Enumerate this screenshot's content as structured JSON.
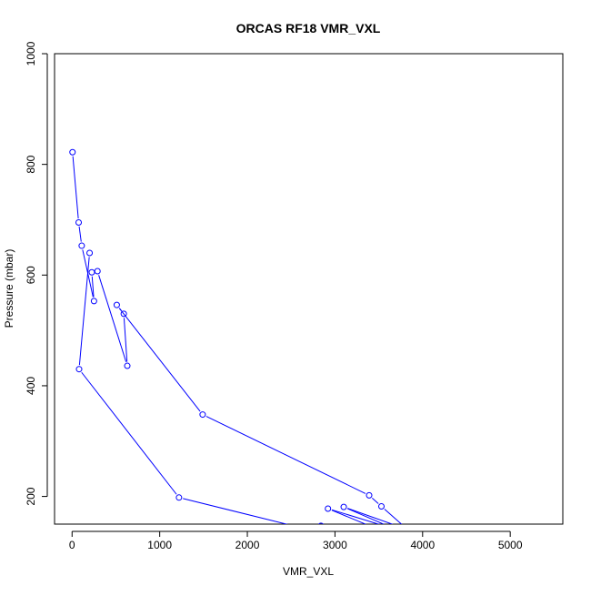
{
  "chart_data": {
    "type": "line",
    "title": "ORCAS RF18 VMR_VXL",
    "xlabel": "VMR_VXL",
    "ylabel": "Pressure (mbar)",
    "xlim": [
      -200,
      5600
    ],
    "ylim": [
      1000,
      150
    ],
    "y_reversed": true,
    "xticks": [
      0,
      1000,
      2000,
      3000,
      4000,
      5000
    ],
    "yticks": [
      200,
      400,
      600,
      800,
      1000
    ],
    "grid": false,
    "legend": "none",
    "line_color": "#0000ff",
    "marker": "open-circle",
    "series": [
      {
        "points": [
          [
            5,
            822
          ],
          [
            75,
            695
          ],
          [
            110,
            653
          ],
          [
            250,
            553
          ],
          [
            225,
            605
          ],
          [
            290,
            607
          ],
          [
            630,
            436
          ],
          [
            590,
            530
          ],
          [
            510,
            546
          ],
          [
            1490,
            348
          ],
          [
            3390,
            202
          ],
          [
            3530,
            182
          ],
          [
            3830,
            140
          ],
          [
            3100,
            181
          ],
          [
            3700,
            140
          ],
          [
            2920,
            178
          ],
          [
            3500,
            140
          ],
          [
            2840,
            147
          ],
          [
            2700,
            140
          ],
          [
            1220,
            198
          ],
          [
            80,
            430
          ],
          [
            200,
            640
          ]
        ]
      }
    ]
  }
}
